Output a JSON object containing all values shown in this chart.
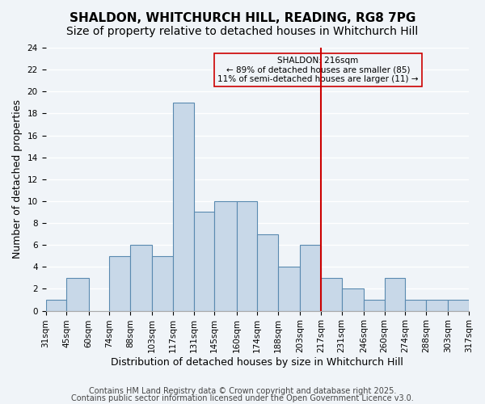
{
  "title_line1": "SHALDON, WHITCHURCH HILL, READING, RG8 7PG",
  "title_line2": "Size of property relative to detached houses in Whitchurch Hill",
  "xlabel": "Distribution of detached houses by size in Whitchurch Hill",
  "ylabel": "Number of detached properties",
  "bin_edges": [
    31,
    45,
    60,
    74,
    88,
    103,
    117,
    131,
    145,
    160,
    174,
    188,
    203,
    217,
    231,
    246,
    260,
    274,
    288,
    303,
    317
  ],
  "counts": [
    1,
    3,
    0,
    5,
    6,
    5,
    19,
    9,
    10,
    10,
    7,
    4,
    6,
    3,
    2,
    1,
    3,
    1,
    1,
    1
  ],
  "bar_facecolor": "#c8d8e8",
  "bar_edgecolor": "#5a8ab0",
  "vline_x": 217,
  "vline_color": "#cc0000",
  "annotation_title": "SHALDON: 216sqm",
  "annotation_line2": "← 89% of detached houses are smaller (85)",
  "annotation_line3": "11% of semi-detached houses are larger (11) →",
  "annotation_box_edgecolor": "#cc0000",
  "ylim": [
    0,
    24
  ],
  "yticks": [
    0,
    2,
    4,
    6,
    8,
    10,
    12,
    14,
    16,
    18,
    20,
    22,
    24
  ],
  "tick_labels": [
    "31sqm",
    "45sqm",
    "60sqm",
    "74sqm",
    "88sqm",
    "103sqm",
    "117sqm",
    "131sqm",
    "145sqm",
    "160sqm",
    "174sqm",
    "188sqm",
    "203sqm",
    "217sqm",
    "231sqm",
    "246sqm",
    "260sqm",
    "274sqm",
    "288sqm",
    "303sqm",
    "317sqm"
  ],
  "footnote1": "Contains HM Land Registry data © Crown copyright and database right 2025.",
  "footnote2": "Contains public sector information licensed under the Open Government Licence v3.0.",
  "background_color": "#f0f4f8",
  "grid_color": "#ffffff",
  "title_fontsize": 11,
  "subtitle_fontsize": 10,
  "axis_label_fontsize": 9,
  "tick_fontsize": 7.5,
  "footnote_fontsize": 7
}
